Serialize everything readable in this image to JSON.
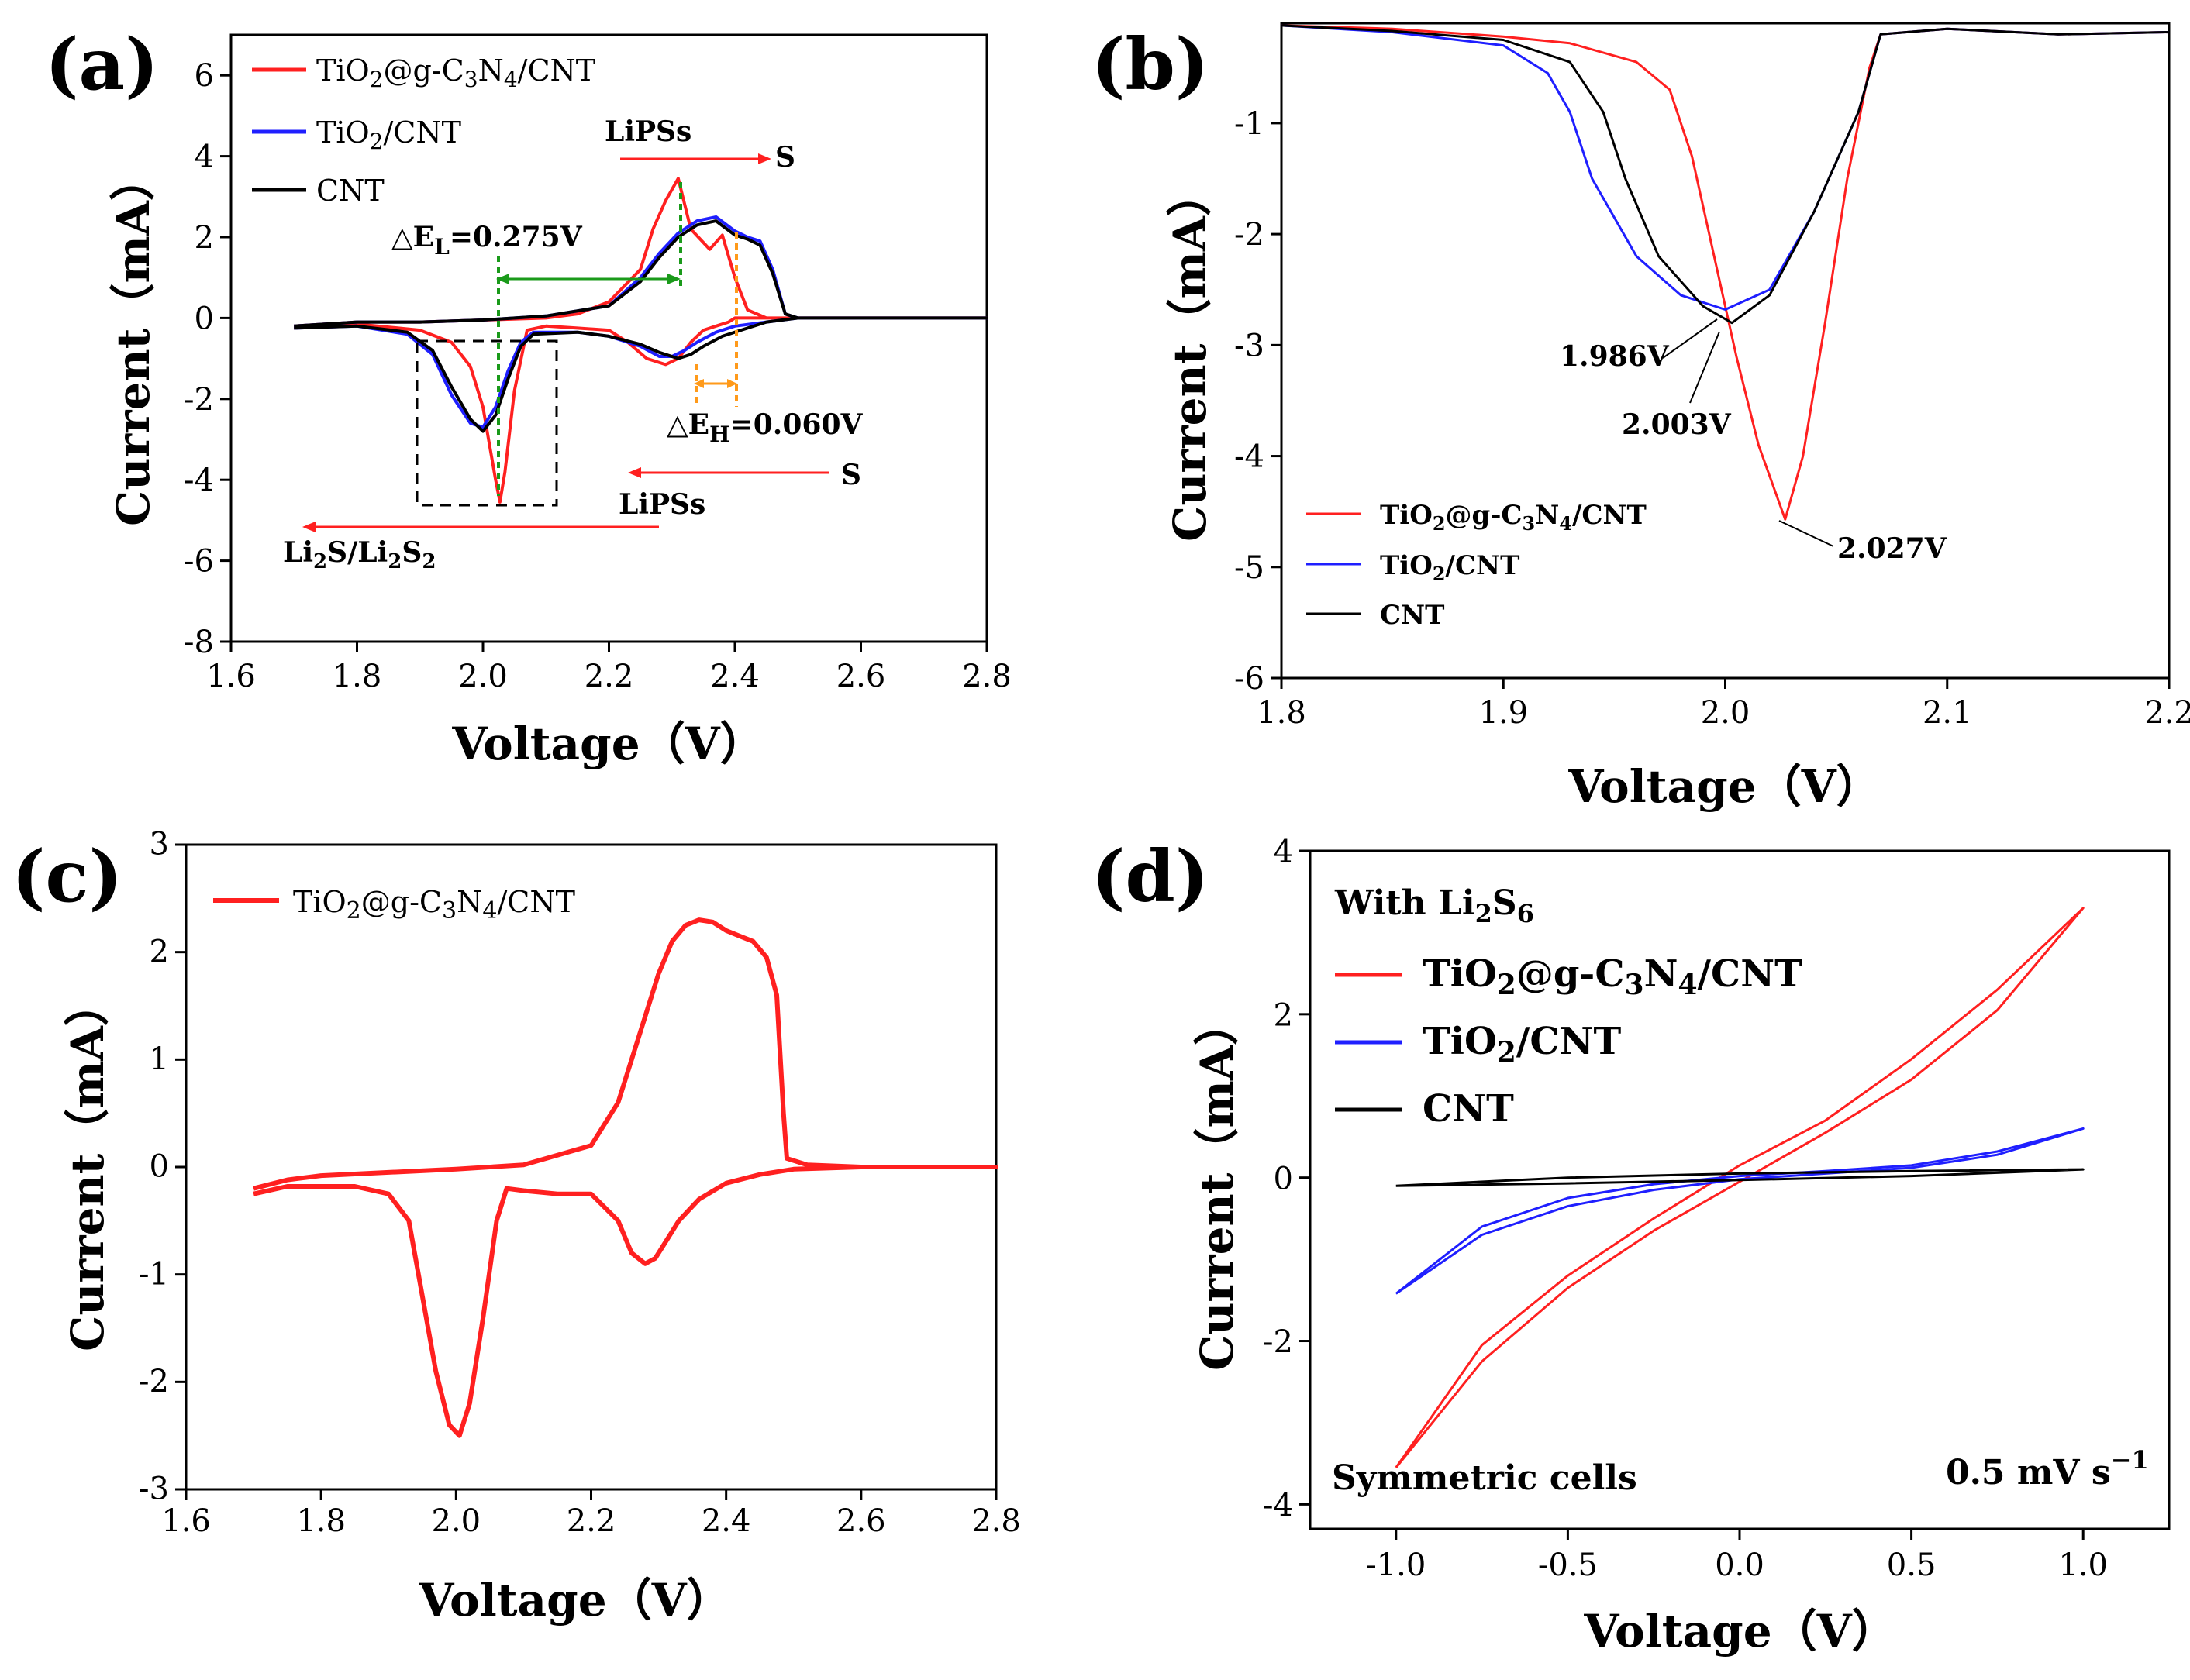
{
  "chart_data": [
    {
      "panel": "(a)",
      "type": "line",
      "xlabel": "Voltage（V）",
      "ylabel": "Current（mA）",
      "xlim": [
        1.6,
        2.8
      ],
      "ylim": [
        -8,
        7
      ],
      "xticks": [
        "1.6",
        "1.8",
        "2.0",
        "2.2",
        "2.4",
        "2.6",
        "2.8"
      ],
      "yticks": [
        "6",
        "4",
        "2",
        "0",
        "-2",
        "-4",
        "-6",
        "-8"
      ],
      "legend": [
        "TiO₂@g-C₃N₄/CNT",
        "TiO₂/CNT",
        "CNT"
      ],
      "series": [
        {
          "name": "TiO₂@g-C₃N₄/CNT",
          "color": "#ff2020",
          "x": [
            1.7,
            1.8,
            1.9,
            1.95,
            1.98,
            2.0,
            2.01,
            2.02,
            2.027,
            2.035,
            2.05,
            2.07,
            2.1,
            2.15,
            2.2,
            2.23,
            2.26,
            2.29,
            2.31,
            2.33,
            2.35,
            2.37,
            2.38,
            2.39,
            2.4,
            2.42,
            2.44,
            2.46,
            2.48,
            2.5,
            2.6,
            2.8,
            2.8,
            2.6,
            2.5,
            2.45,
            2.42,
            2.4,
            2.38,
            2.36,
            2.33,
            2.31,
            2.29,
            2.27,
            2.25,
            2.2,
            2.15,
            2.1,
            2.0,
            1.9,
            1.8,
            1.7
          ],
          "y": [
            -0.25,
            -0.15,
            -0.3,
            -0.6,
            -1.2,
            -2.2,
            -3.1,
            -4.0,
            -4.55,
            -3.8,
            -1.8,
            -0.3,
            -0.2,
            -0.25,
            -0.3,
            -0.6,
            -1.0,
            -1.15,
            -1.0,
            -0.6,
            -0.3,
            -0.2,
            -0.15,
            -0.1,
            0.0,
            0.0,
            0.0,
            0.0,
            0.0,
            0.0,
            0.0,
            0.0,
            0.0,
            0.0,
            0.0,
            0.0,
            0.2,
            1.0,
            2.05,
            1.7,
            2.2,
            3.45,
            2.9,
            2.2,
            1.2,
            0.4,
            0.1,
            0.0,
            -0.05,
            -0.1,
            -0.1,
            -0.2
          ]
        },
        {
          "name": "TiO₂/CNT",
          "color": "#1f1fff",
          "x": [
            1.7,
            1.8,
            1.88,
            1.92,
            1.95,
            1.98,
            2.0,
            2.02,
            2.04,
            2.06,
            2.08,
            2.15,
            2.2,
            2.25,
            2.28,
            2.3,
            2.32,
            2.34,
            2.37,
            2.4,
            2.45,
            2.5,
            2.6,
            2.8,
            2.8,
            2.6,
            2.5,
            2.48,
            2.46,
            2.44,
            2.42,
            2.4,
            2.37,
            2.34,
            2.31,
            2.28,
            2.25,
            2.2,
            2.1,
            2.0,
            1.9,
            1.8,
            1.7
          ],
          "y": [
            -0.25,
            -0.2,
            -0.4,
            -0.9,
            -1.9,
            -2.6,
            -2.7,
            -2.2,
            -1.3,
            -0.6,
            -0.35,
            -0.35,
            -0.45,
            -0.7,
            -0.95,
            -0.95,
            -0.8,
            -0.6,
            -0.35,
            -0.2,
            -0.1,
            0.0,
            0.0,
            0.0,
            0.0,
            0.0,
            0.0,
            0.1,
            1.2,
            1.9,
            2.0,
            2.15,
            2.5,
            2.4,
            2.1,
            1.6,
            1.0,
            0.3,
            0.05,
            -0.05,
            -0.1,
            -0.1,
            -0.2
          ]
        },
        {
          "name": "CNT",
          "color": "#000000",
          "x": [
            1.7,
            1.8,
            1.88,
            1.92,
            1.95,
            1.98,
            2.0,
            2.02,
            2.04,
            2.06,
            2.08,
            2.15,
            2.2,
            2.25,
            2.28,
            2.31,
            2.33,
            2.35,
            2.38,
            2.42,
            2.45,
            2.5,
            2.6,
            2.8,
            2.8,
            2.6,
            2.5,
            2.48,
            2.46,
            2.44,
            2.42,
            2.4,
            2.37,
            2.34,
            2.31,
            2.28,
            2.25,
            2.2,
            2.1,
            2.0,
            1.9,
            1.8,
            1.7
          ],
          "y": [
            -0.25,
            -0.2,
            -0.35,
            -0.8,
            -1.7,
            -2.5,
            -2.8,
            -2.4,
            -1.5,
            -0.7,
            -0.4,
            -0.35,
            -0.45,
            -0.65,
            -0.85,
            -1.0,
            -0.9,
            -0.7,
            -0.45,
            -0.25,
            -0.1,
            0.0,
            0.0,
            0.0,
            0.0,
            0.0,
            0.0,
            0.1,
            1.1,
            1.8,
            1.95,
            2.05,
            2.4,
            2.3,
            2.0,
            1.5,
            0.9,
            0.3,
            0.05,
            -0.05,
            -0.1,
            -0.1,
            -0.2
          ]
        }
      ],
      "annotations": {
        "lipss_top": "LiPSs",
        "s_top": "S",
        "delta_l": "△E",
        "delta_l_sub": "L",
        "delta_l_val": "=0.275V",
        "delta_h": "△E",
        "delta_h_sub": "H",
        "delta_h_val": "=0.060V",
        "s_bottom": "S",
        "lipss_bottom": "LiPSs",
        "li2s_a": "Li",
        "li2s_b": "S/Li",
        "li2s_c": "S",
        "sub2": "2"
      }
    },
    {
      "panel": "(b)",
      "type": "line",
      "xlabel": "Voltage（V）",
      "ylabel": "Current（mA）",
      "xlim": [
        1.8,
        2.2
      ],
      "ylim": [
        -6,
        -0.1
      ],
      "xticks": [
        "1.8",
        "1.9",
        "2.0",
        "2.1",
        "2.2"
      ],
      "yticks": [
        "-1",
        "-2",
        "-3",
        "-4",
        "-5",
        "-6"
      ],
      "legend": [
        "TiO₂@g-C₃N₄/CNT",
        "TiO₂/CNT",
        "CNT"
      ],
      "series": [
        {
          "name": "TiO₂@g-C₃N₄/CNT",
          "color": "#ff2020",
          "x": [
            1.8,
            1.85,
            1.9,
            1.93,
            1.96,
            1.975,
            1.985,
            1.995,
            2.005,
            2.015,
            2.027,
            2.035,
            2.045,
            2.055,
            2.065,
            2.07,
            2.1,
            2.15,
            2.2
          ],
          "y": [
            -0.12,
            -0.15,
            -0.22,
            -0.28,
            -0.45,
            -0.7,
            -1.3,
            -2.2,
            -3.1,
            -3.9,
            -4.57,
            -4.0,
            -2.8,
            -1.5,
            -0.5,
            -0.2,
            -0.15,
            -0.2,
            -0.18
          ]
        },
        {
          "name": "TiO₂/CNT",
          "color": "#1f1fff",
          "x": [
            1.8,
            1.85,
            1.9,
            1.92,
            1.93,
            1.94,
            1.96,
            1.98,
            2.0,
            2.02,
            2.04,
            2.06,
            2.07,
            2.1,
            2.15,
            2.2
          ],
          "y": [
            -0.12,
            -0.18,
            -0.3,
            -0.55,
            -0.9,
            -1.5,
            -2.2,
            -2.55,
            -2.68,
            -2.5,
            -1.8,
            -0.9,
            -0.2,
            -0.15,
            -0.2,
            -0.18
          ]
        },
        {
          "name": "CNT",
          "color": "#000000",
          "x": [
            1.8,
            1.85,
            1.9,
            1.93,
            1.945,
            1.955,
            1.97,
            1.99,
            2.003,
            2.02,
            2.04,
            2.06,
            2.07,
            2.1,
            2.15,
            2.2
          ],
          "y": [
            -0.12,
            -0.17,
            -0.25,
            -0.45,
            -0.9,
            -1.5,
            -2.2,
            -2.65,
            -2.8,
            -2.55,
            -1.8,
            -0.9,
            -0.2,
            -0.15,
            -0.2,
            -0.18
          ]
        }
      ],
      "annotations": {
        "p1": "1.986V",
        "p2": "2.003V",
        "p3": "2.027V"
      }
    },
    {
      "panel": "(c)",
      "type": "line",
      "xlabel": "Voltage（V）",
      "ylabel": "Current（mA）",
      "xlim": [
        1.6,
        2.8
      ],
      "ylim": [
        -3,
        3
      ],
      "xticks": [
        "1.6",
        "1.8",
        "2.0",
        "2.2",
        "2.4",
        "2.6",
        "2.8"
      ],
      "yticks": [
        "3",
        "2",
        "1",
        "0",
        "-1",
        "-2",
        "-3"
      ],
      "legend": [
        "TiO₂@g-C₃N₄/CNT"
      ],
      "series": [
        {
          "name": "TiO₂@g-C₃N₄/CNT",
          "color": "#ff2020",
          "x": [
            1.7,
            1.75,
            1.85,
            1.9,
            1.93,
            1.95,
            1.97,
            1.99,
            2.005,
            2.02,
            2.04,
            2.06,
            2.075,
            2.1,
            2.15,
            2.2,
            2.24,
            2.26,
            2.28,
            2.295,
            2.31,
            2.33,
            2.36,
            2.4,
            2.45,
            2.5,
            2.6,
            2.8,
            2.8,
            2.6,
            2.52,
            2.49,
            2.485,
            2.475,
            2.46,
            2.44,
            2.42,
            2.4,
            2.38,
            2.36,
            2.34,
            2.32,
            2.3,
            2.27,
            2.24,
            2.2,
            2.1,
            2.0,
            1.9,
            1.8,
            1.75,
            1.7
          ],
          "y": [
            -0.25,
            -0.18,
            -0.18,
            -0.25,
            -0.5,
            -1.2,
            -1.9,
            -2.4,
            -2.5,
            -2.2,
            -1.4,
            -0.5,
            -0.2,
            -0.22,
            -0.25,
            -0.25,
            -0.5,
            -0.8,
            -0.9,
            -0.85,
            -0.7,
            -0.5,
            -0.3,
            -0.15,
            -0.07,
            -0.02,
            0.0,
            0.0,
            0.0,
            0.0,
            0.02,
            0.08,
            0.5,
            1.6,
            1.95,
            2.1,
            2.15,
            2.2,
            2.28,
            2.3,
            2.25,
            2.1,
            1.8,
            1.2,
            0.6,
            0.2,
            0.02,
            -0.02,
            -0.05,
            -0.08,
            -0.12,
            -0.2
          ]
        }
      ],
      "annotations": {}
    },
    {
      "panel": "(d)",
      "type": "line",
      "xlabel": "Voltage（V）",
      "ylabel": "Current（mA）",
      "xlim": [
        -1.25,
        1.25
      ],
      "ylim": [
        -4.3,
        4
      ],
      "xticks": [
        "-1.0",
        "-0.5",
        "0.0",
        "0.5",
        "1.0"
      ],
      "yticks": [
        "4",
        "2",
        "0",
        "-2",
        "-4"
      ],
      "legend": [
        "TiO₂@g-C₃N₄/CNT",
        "TiO₂/CNT",
        "CNT"
      ],
      "series": [
        {
          "name": "TiO₂@g-C₃N₄/CNT",
          "color": "#ff2020",
          "x": [
            -1.0,
            -0.75,
            -0.5,
            -0.25,
            0.0,
            0.25,
            0.5,
            0.75,
            1.0,
            0.75,
            0.5,
            0.25,
            0.0,
            -0.25,
            -0.5,
            -0.75,
            -1.0
          ],
          "y": [
            -3.55,
            -2.25,
            -1.35,
            -0.65,
            -0.05,
            0.55,
            1.2,
            2.05,
            3.3,
            2.3,
            1.45,
            0.7,
            0.15,
            -0.5,
            -1.2,
            -2.05,
            -3.55
          ]
        },
        {
          "name": "TiO₂/CNT",
          "color": "#1f1fff",
          "x": [
            -1.0,
            -0.75,
            -0.5,
            -0.25,
            0.0,
            0.25,
            0.5,
            0.75,
            1.0,
            0.75,
            0.5,
            0.25,
            0.0,
            -0.25,
            -0.5,
            -0.75,
            -1.0
          ],
          "y": [
            -1.42,
            -0.7,
            -0.35,
            -0.15,
            -0.02,
            0.05,
            0.12,
            0.28,
            0.6,
            0.32,
            0.15,
            0.08,
            0.02,
            -0.08,
            -0.25,
            -0.6,
            -1.42
          ]
        },
        {
          "name": "CNT",
          "color": "#000000",
          "x": [
            -1.0,
            -0.5,
            0.0,
            0.5,
            1.0,
            0.5,
            0.0,
            -0.5,
            -1.0
          ],
          "y": [
            -0.1,
            -0.07,
            -0.03,
            0.02,
            0.1,
            0.08,
            0.05,
            0.0,
            -0.1
          ]
        }
      ],
      "annotations": {
        "with_a": "With Li",
        "with_b": "S",
        "with_sub1": "2",
        "with_sub2": "6",
        "sym": "Symmetric cells",
        "rate": "0.5 mV s",
        "rate_sup": "−1"
      }
    }
  ],
  "legend_parts": {
    "tio2_a": "TiO",
    "sub2": "2",
    "tio2_b": "@g-C",
    "sub3": "3",
    "n": "N",
    "sub4": "4",
    "tio2_c": "/CNT",
    "tio2cnt_b": "/CNT",
    "cnt": "CNT"
  }
}
